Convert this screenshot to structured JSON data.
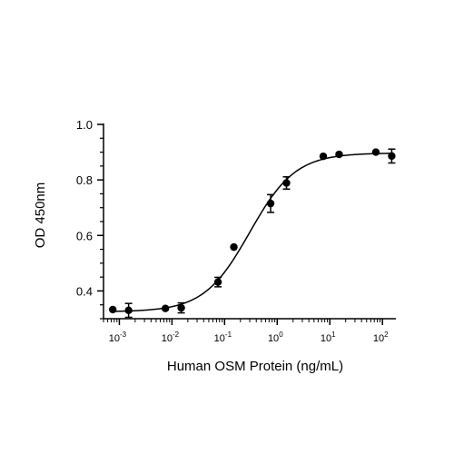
{
  "chart_data": {
    "type": "scatter",
    "xlabel": "Human OSM Protein (ng/mL)",
    "ylabel": "OD 450nm",
    "x_scale": "log10",
    "xlim": [
      0.0005,
      180
    ],
    "ylim": [
      0.3,
      1.0
    ],
    "x_ticks": [
      {
        "value": 0.001,
        "base": "10",
        "exp": "-3"
      },
      {
        "value": 0.01,
        "base": "10",
        "exp": "-2"
      },
      {
        "value": 0.1,
        "base": "10",
        "exp": "-1"
      },
      {
        "value": 1,
        "base": "10",
        "exp": "0"
      },
      {
        "value": 10,
        "base": "10",
        "exp": "1"
      },
      {
        "value": 100,
        "base": "10",
        "exp": "2"
      }
    ],
    "y_ticks": [
      {
        "value": 0.4,
        "label": "0.4"
      },
      {
        "value": 0.6,
        "label": "0.6"
      },
      {
        "value": 0.8,
        "label": "0.8"
      },
      {
        "value": 1.0,
        "label": "1.0"
      }
    ],
    "grid": false,
    "legend": "none",
    "colors": {
      "marker": "#000000",
      "line": "#000000",
      "axis": "#000000"
    },
    "series": [
      {
        "points": [
          {
            "x": 0.00075,
            "y": 0.333,
            "err": 0
          },
          {
            "x": 0.0015,
            "y": 0.33,
            "err": 0.025
          },
          {
            "x": 0.0075,
            "y": 0.337,
            "err": 0
          },
          {
            "x": 0.015,
            "y": 0.339,
            "err": 0.018
          },
          {
            "x": 0.075,
            "y": 0.432,
            "err": 0.017
          },
          {
            "x": 0.15,
            "y": 0.558,
            "err": 0
          },
          {
            "x": 0.75,
            "y": 0.715,
            "err": 0.032
          },
          {
            "x": 1.5,
            "y": 0.789,
            "err": 0.022
          },
          {
            "x": 7.5,
            "y": 0.885,
            "err": 0
          },
          {
            "x": 15,
            "y": 0.892,
            "err": 0
          },
          {
            "x": 75,
            "y": 0.9,
            "err": 0
          },
          {
            "x": 150,
            "y": 0.886,
            "err": 0.025
          }
        ],
        "fit": {
          "model": "4PL",
          "bottom": 0.325,
          "top": 0.897,
          "ec50": 0.3,
          "hill": 1.0
        }
      }
    ]
  }
}
